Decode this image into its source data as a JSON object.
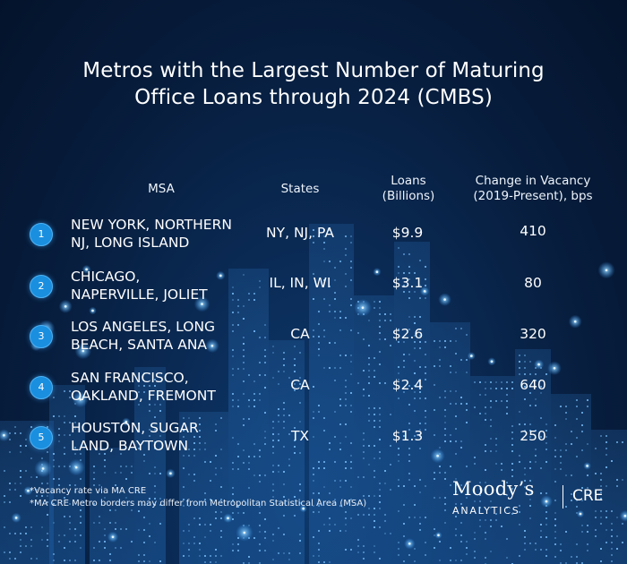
{
  "title": {
    "line1": "Metros with the Largest Number of Maturing",
    "line2": "Office Loans through 2024 (CMBS)"
  },
  "headers": {
    "msa": "MSA",
    "states": "States",
    "loans_line1": "Loans",
    "loans_line2": "(Billions)",
    "vacancy_line1": "Change in Vacancy",
    "vacancy_line2": "(2019-Present), bps"
  },
  "rows": [
    {
      "rank": "1",
      "msa_line1": "NEW YORK, NORTHERN",
      "msa_line2": "NJ, LONG ISLAND",
      "states": "NY, NJ, PA",
      "loans": "$9.9",
      "vacancy": "410"
    },
    {
      "rank": "2",
      "msa_line1": "CHICAGO,",
      "msa_line2": "NAPERVILLE, JOLIET",
      "states": "IL, IN, WI",
      "loans": "$3.1",
      "vacancy": "80"
    },
    {
      "rank": "3",
      "msa_line1": "LOS ANGELES, LONG",
      "msa_line2": "BEACH, SANTA ANA",
      "states": "CA",
      "loans": "$2.6",
      "vacancy": "320"
    },
    {
      "rank": "4",
      "msa_line1": "SAN FRANCISCO,",
      "msa_line2": "OAKLAND, FREMONT",
      "states": "CA",
      "loans": "$2.4",
      "vacancy": "640"
    },
    {
      "rank": "5",
      "msa_line1": "HOUSTON, SUGAR",
      "msa_line2": "LAND, BAYTOWN",
      "states": "TX",
      "loans": "$1.3",
      "vacancy": "250"
    }
  ],
  "footnotes": {
    "note1": "*Vacancy rate via MA CRE",
    "note2": "*MA CRE Metro borders may differ from Metropolitan Statistical Area (MSA)"
  },
  "logo": {
    "name": "Moody’s",
    "sub": "ANALYTICS",
    "product": "CRE"
  },
  "colors": {
    "background": "#071d3d",
    "badge": "#1a8fe0",
    "text": "#ffffff"
  }
}
